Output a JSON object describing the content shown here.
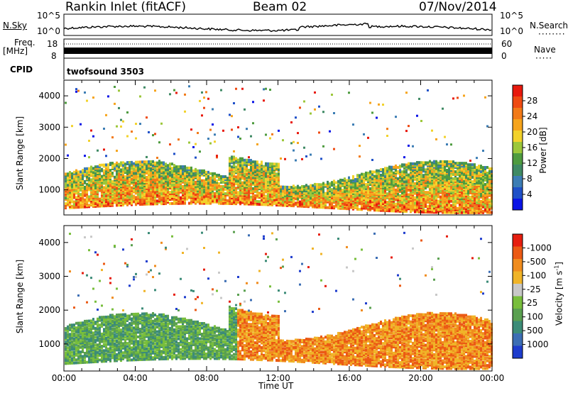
{
  "header": {
    "station": "Rankin Inlet (fitACF)",
    "beam": "Beam 02",
    "date": "07/Nov/2014"
  },
  "noise_panel": {
    "left_label": "N.Sky",
    "right_label": "N.Search",
    "left_ticks": [
      "10^5",
      "10^0"
    ],
    "right_ticks": [
      "10^5",
      "10^0"
    ]
  },
  "freq_panel": {
    "left_label_1": "Freq.",
    "left_label_2": "[MHz]",
    "left_ticks": [
      "18",
      "8"
    ],
    "right_ticks": [
      "60",
      "0"
    ],
    "right_label": "Nave"
  },
  "cpid_panel": {
    "label": "CPID",
    "text": "twofsound 3503"
  },
  "chart_data": [
    {
      "type": "heatmap",
      "title": "",
      "xlabel": "",
      "ylabel": "Slant Range [km]",
      "x_ticks": [
        "00:00",
        "04:00",
        "08:00",
        "12:00",
        "16:00",
        "20:00",
        "00:00"
      ],
      "y_ticks": [
        1000,
        2000,
        3000,
        4000
      ],
      "ylim": [
        200,
        4500
      ],
      "colorbar": {
        "label": "Power [dB]",
        "ticks": [
          4,
          8,
          12,
          16,
          20,
          24,
          28
        ],
        "colors": [
          "#0a14e6",
          "#1f50c8",
          "#3c7db4",
          "#3f8a64",
          "#4e9b3f",
          "#9cc73a",
          "#f2d22b",
          "#f6a41c",
          "#f27a18",
          "#ef4a12",
          "#e8190d"
        ]
      }
    },
    {
      "type": "heatmap",
      "title": "",
      "xlabel": "Time UT",
      "ylabel": "Slant Range [km]",
      "x_ticks": [
        "00:00",
        "04:00",
        "08:00",
        "12:00",
        "16:00",
        "20:00",
        "00:00"
      ],
      "y_ticks": [
        1000,
        2000,
        3000,
        4000
      ],
      "ylim": [
        200,
        4500
      ],
      "colorbar": {
        "label": "Velocity [m s^-1]",
        "ticks": [
          "1000",
          "500",
          "100",
          "25",
          "-25",
          "-100",
          "-500",
          "-1000"
        ],
        "colors": [
          "#1e3ccd",
          "#3c6eb4",
          "#3c8c78",
          "#5aa050",
          "#78be3c",
          "#c8c8c8",
          "#f0b428",
          "#f08c1e",
          "#eb5a14",
          "#e61e0f"
        ]
      }
    }
  ]
}
